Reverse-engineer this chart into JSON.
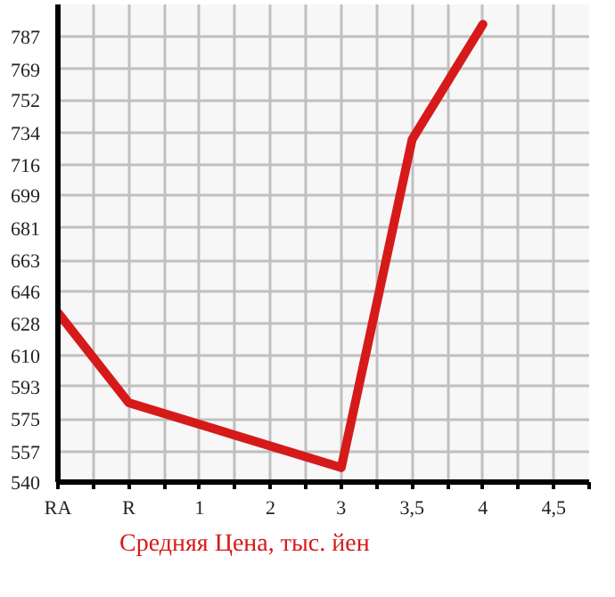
{
  "chart_data": {
    "type": "line",
    "categories": [
      "RA",
      "R",
      "1",
      "2",
      "3",
      "3,5",
      "4",
      "4,5"
    ],
    "series": [
      {
        "name": "Средняя Цена, тыс. йен",
        "color": "#d61a1a",
        "values": [
          634,
          584,
          null,
          null,
          548,
          730,
          794,
          null
        ]
      }
    ],
    "ylim": [
      540,
      805
    ],
    "yticks": [
      540,
      557,
      575,
      593,
      610,
      628,
      646,
      663,
      681,
      699,
      716,
      734,
      752,
      769,
      787
    ],
    "grid": true,
    "legend": "bottom",
    "marker": "none",
    "line_style": "solid"
  }
}
